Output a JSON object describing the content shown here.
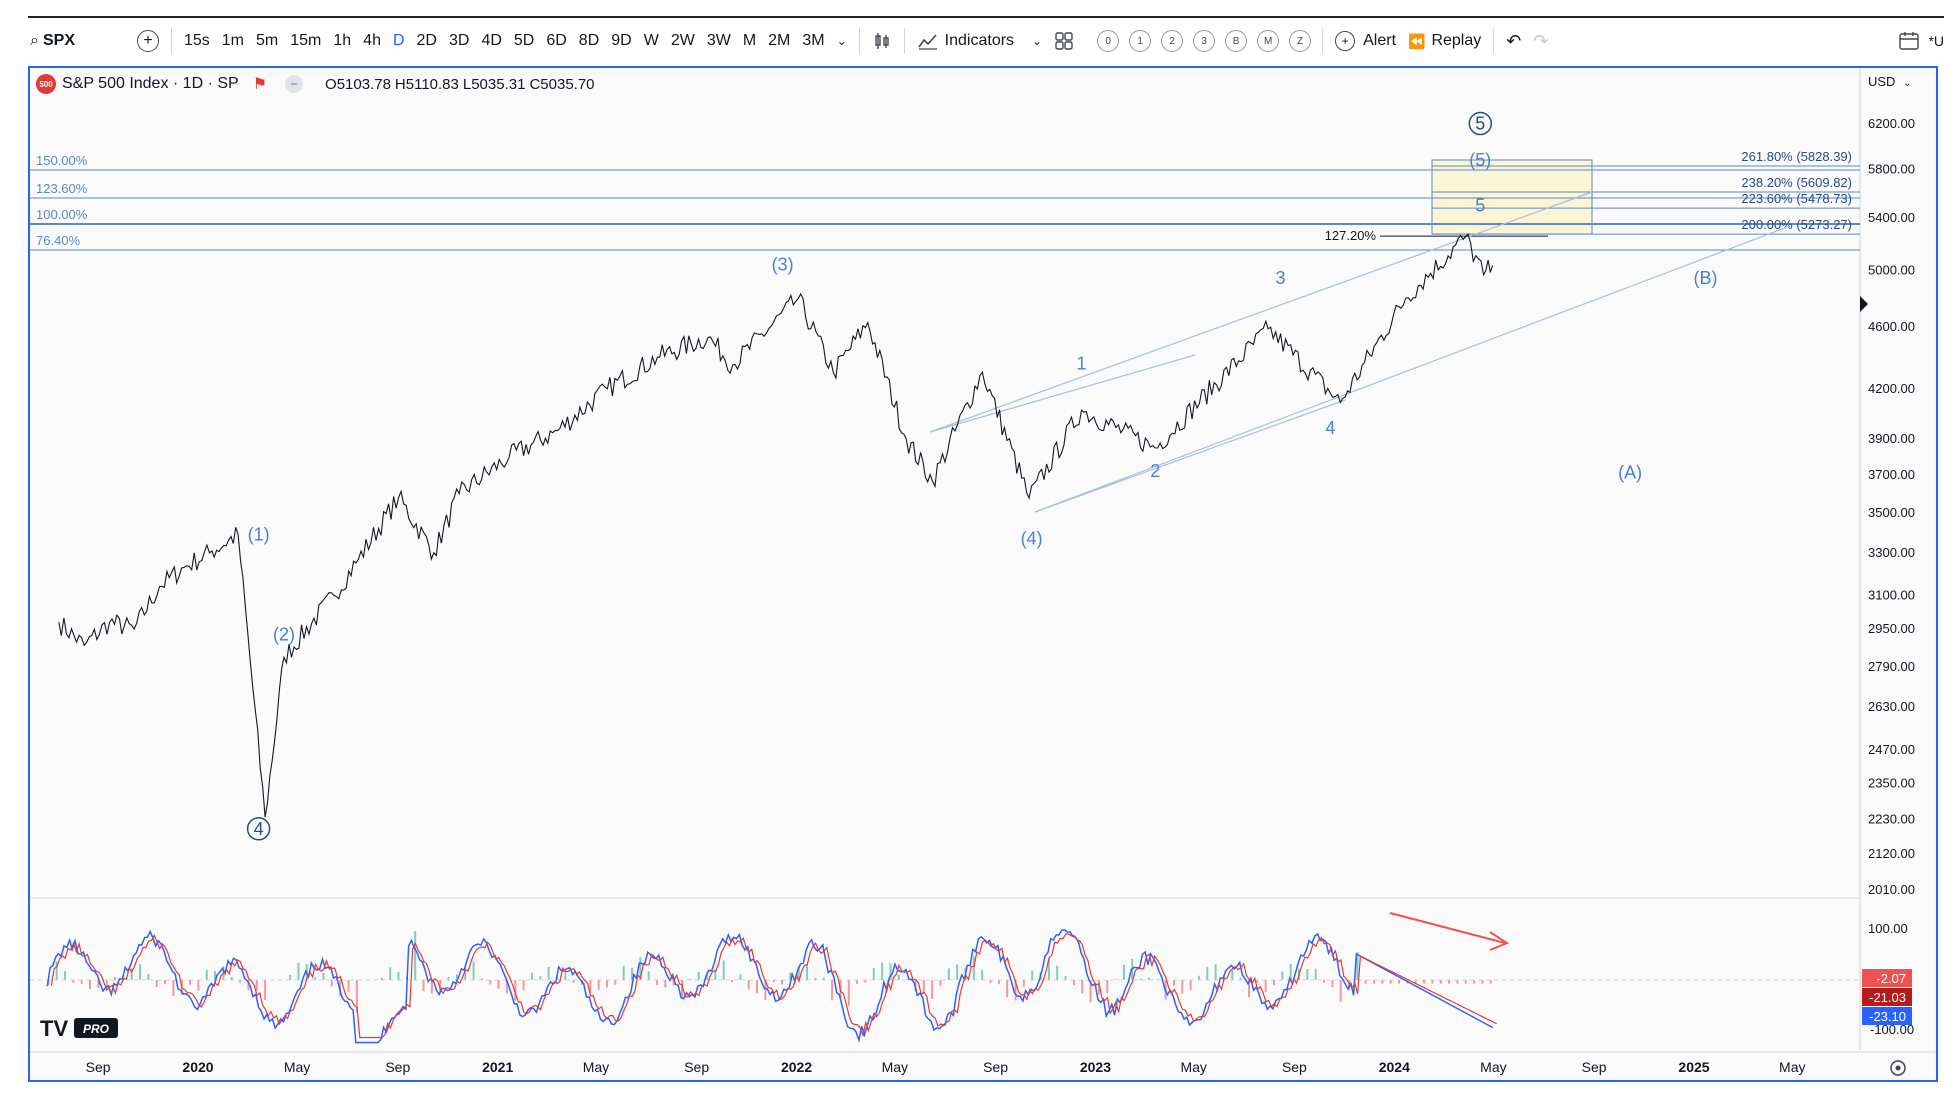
{
  "toolbar": {
    "symbol": "SPX",
    "intervals": [
      "15s",
      "1m",
      "5m",
      "15m",
      "1h",
      "4h",
      "D",
      "2D",
      "3D",
      "4D",
      "5D",
      "6D",
      "8D",
      "9D",
      "W",
      "2W",
      "3W",
      "M",
      "2M",
      "3M"
    ],
    "active_interval": "D",
    "indicators_label": "Indicators",
    "layout_buttons": [
      "0",
      "1",
      "2",
      "3",
      "B",
      "M",
      "Z"
    ],
    "alert_label": "Alert",
    "replay_label": "Replay",
    "right_cut_label": "*U"
  },
  "legend": {
    "title": "S&P 500 Index · 1D · SP",
    "badge": "500",
    "open": "O5103.78",
    "high": "H5110.83",
    "low": "L5035.31",
    "close": "C5035.70"
  },
  "currency": "USD",
  "watermark": "PRO",
  "chart_data": {
    "type": "line",
    "symbol": "SPX",
    "price_axis_ticks": [
      6200,
      5800,
      5400,
      5000,
      4600,
      4200,
      3900,
      3700,
      3500,
      3300,
      3100,
      2950,
      2790,
      2630,
      2470,
      2350,
      2230,
      2120,
      2010
    ],
    "price_tick_labels": [
      "6200.00",
      "5800.00",
      "5400.00",
      "5000.00",
      "4600.00",
      "4200.00",
      "3900.00",
      "3700.00",
      "3500.00",
      "3300.00",
      "3100.00",
      "2950.00",
      "2790.00",
      "2630.00",
      "2470.00",
      "2350.00",
      "2230.00",
      "2120.00",
      "2010.00"
    ],
    "log_scale": true,
    "time_axis_labels": [
      "Sep",
      "2020",
      "May",
      "Sep",
      "2021",
      "May",
      "Sep",
      "2022",
      "May",
      "Sep",
      "2023",
      "May",
      "Sep",
      "2024",
      "May",
      "Sep",
      "2025",
      "May"
    ],
    "price_path": [
      [
        "2019-07",
        2980
      ],
      [
        "2019-08",
        2880
      ],
      [
        "2019-09",
        2980
      ],
      [
        "2019-10",
        2950
      ],
      [
        "2019-11",
        3140
      ],
      [
        "2019-12",
        3230
      ],
      [
        "2020-01",
        3300
      ],
      [
        "2020-02-19",
        3390
      ],
      [
        "2020-03-23",
        2237
      ],
      [
        "2020-04",
        2830
      ],
      [
        "2020-06",
        3100
      ],
      [
        "2020-07",
        3270
      ],
      [
        "2020-09-02",
        3580
      ],
      [
        "2020-10",
        3300
      ],
      [
        "2020-11",
        3600
      ],
      [
        "2021-01",
        3800
      ],
      [
        "2021-03",
        3950
      ],
      [
        "2021-05",
        4200
      ],
      [
        "2021-07",
        4400
      ],
      [
        "2021-09",
        4530
      ],
      [
        "2021-10",
        4350
      ],
      [
        "2022-01-03",
        4796
      ],
      [
        "2022-02",
        4300
      ],
      [
        "2022-03-29",
        4630
      ],
      [
        "2022-05",
        3900
      ],
      [
        "2022-06-16",
        3667
      ],
      [
        "2022-08-16",
        4305
      ],
      [
        "2022-10-12",
        3577
      ],
      [
        "2022-12",
        4070
      ],
      [
        "2023-03",
        3850
      ],
      [
        "2023-07-31",
        4588
      ],
      [
        "2023-10-27",
        4117
      ],
      [
        "2024-01",
        4800
      ],
      [
        "2024-03-28",
        5254
      ],
      [
        "2024-04-19",
        4967
      ],
      [
        "2024-04-30",
        5035.7
      ]
    ],
    "wave_labels": [
      {
        "text": "4",
        "circled": true,
        "date": "2020-03",
        "price": 2180
      },
      {
        "text": "(1)",
        "date": "2020-03",
        "price": 3360
      },
      {
        "text": "(2)",
        "date": "2020-04",
        "price": 2900
      },
      {
        "text": "(3)",
        "date": "2021-12",
        "price": 5000
      },
      {
        "text": "(4)",
        "date": "2022-10",
        "price": 3340
      },
      {
        "text": "1",
        "date": "2022-12",
        "price": 4320
      },
      {
        "text": "2",
        "date": "2023-03",
        "price": 3690
      },
      {
        "text": "3",
        "date": "2023-08",
        "price": 4900
      },
      {
        "text": "4",
        "date": "2023-10",
        "price": 3930
      },
      {
        "text": "5",
        "date": "2024-04",
        "price": 5450
      },
      {
        "text": "(5)",
        "date": "2024-04",
        "price": 5830
      },
      {
        "text": "5",
        "circled": true,
        "date": "2024-04",
        "price": 6150
      },
      {
        "text": "(A)",
        "date": "2024-10",
        "price": 3680
      },
      {
        "text": "(B)",
        "date": "2025-01",
        "price": 4900
      }
    ],
    "fib_left": [
      "150.00%",
      "123.60%",
      "100.00%",
      "76.40%"
    ],
    "fib_right": [
      "261.80% (5828.39)",
      "238.20% (5609.82)",
      "223.60% (5478.73)",
      "200.00% (5273.27)"
    ],
    "fib_mid": "127.20%",
    "oscillator": {
      "tick_labels": [
        "100.00",
        "-100.00"
      ],
      "readouts": [
        "-2.07",
        "-21.03",
        "-23.10"
      ],
      "readout_colors": [
        "#ef5350",
        "#b71c1c",
        "#2962ff"
      ]
    }
  }
}
